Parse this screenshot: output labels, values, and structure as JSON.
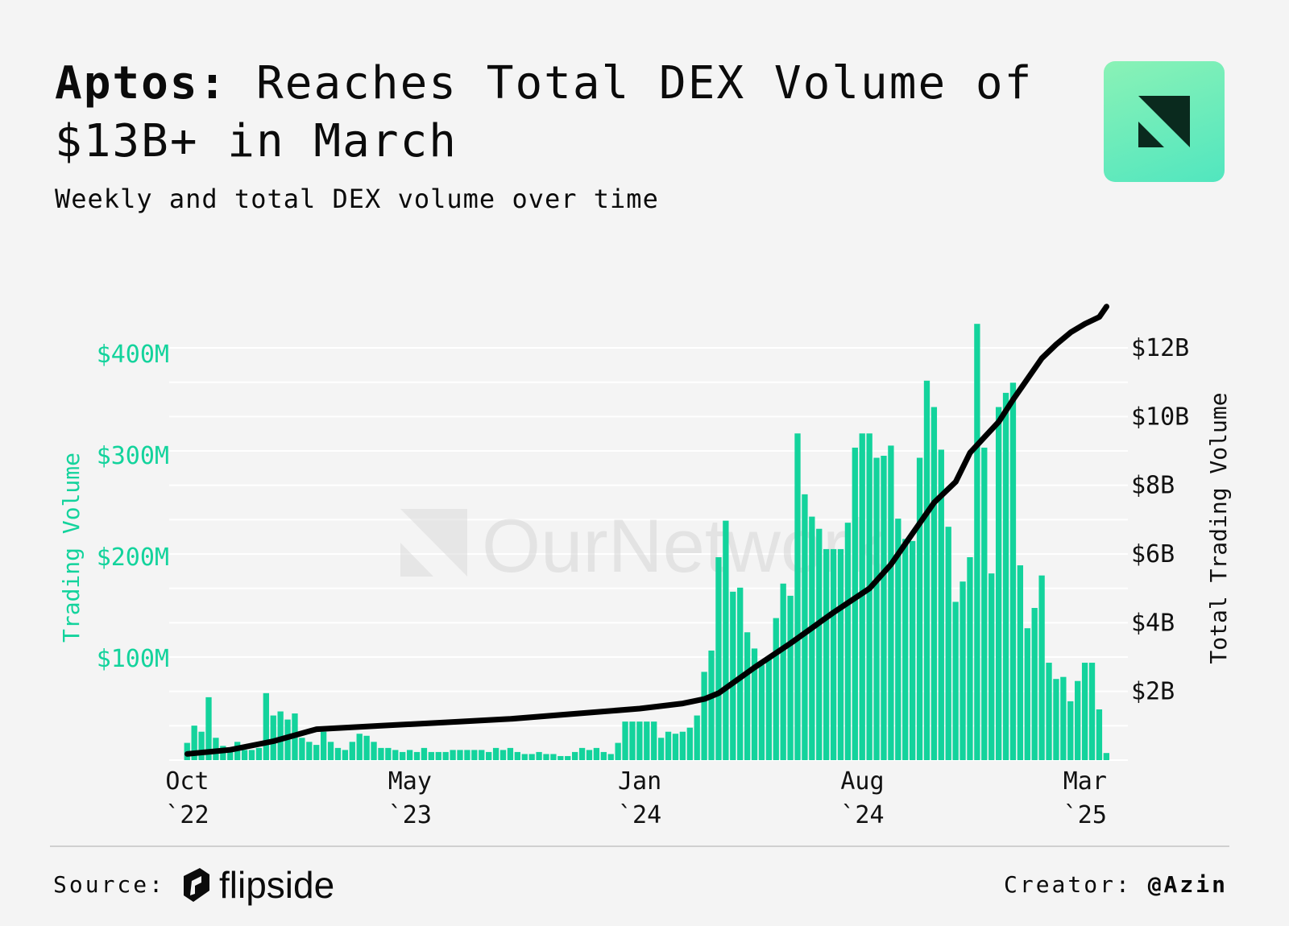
{
  "header": {
    "title_brand": "Aptos:",
    "title_rest": "Reaches Total DEX Volume of $13B+ in March",
    "subtitle": "Weekly and total DEX volume over time"
  },
  "footer": {
    "source_label": "Source:",
    "source_name": "flipside",
    "creator_label": "Creator:",
    "creator_handle": "@Azin"
  },
  "watermark": {
    "text": "OurNetwork"
  },
  "colors": {
    "bar": "#13d39c",
    "line": "#000000",
    "left_axis_text": "#13d39c",
    "right_axis_text": "#111111",
    "grid": "#ffffff",
    "logo_gradient": [
      "#8af2b6",
      "#51e6bf"
    ]
  },
  "chart_data": {
    "type": "bar",
    "x_tick_labels": [
      {
        "line1": "Oct",
        "line2": "`22"
      },
      {
        "line1": "May",
        "line2": "`23"
      },
      {
        "line1": "Jan",
        "line2": "`24"
      },
      {
        "line1": "Aug",
        "line2": "`24"
      },
      {
        "line1": "Mar",
        "line2": "`25"
      }
    ],
    "x_tick_weeks": [
      0,
      31,
      63,
      94,
      125
    ],
    "left_axis": {
      "label": "Trading Volume",
      "unit": "M",
      "range": [
        0,
        400
      ],
      "ticks": [
        100,
        200,
        300,
        400
      ],
      "tick_labels": [
        "$100M",
        "$200M",
        "$300M",
        "$400M"
      ]
    },
    "right_axis": {
      "label": "Total Trading Volume",
      "unit": "B",
      "range": [
        0,
        12.75
      ],
      "ticks": [
        2,
        4,
        6,
        8,
        10,
        12
      ],
      "tick_labels": [
        "$2B",
        "$4B",
        "$6B",
        "$8B",
        "$10B",
        "$12B"
      ]
    },
    "grid": true,
    "series": [
      {
        "type": "bar",
        "axis": "left",
        "values": [
          17,
          34,
          28,
          62,
          22,
          14,
          10,
          18,
          10,
          10,
          12,
          66,
          44,
          48,
          40,
          46,
          22,
          18,
          15,
          28,
          18,
          12,
          10,
          18,
          26,
          24,
          18,
          12,
          12,
          10,
          8,
          10,
          8,
          12,
          8,
          8,
          8,
          10,
          10,
          10,
          10,
          10,
          8,
          12,
          10,
          12,
          8,
          6,
          6,
          8,
          6,
          6,
          4,
          4,
          8,
          12,
          10,
          12,
          8,
          6,
          17,
          38,
          38,
          38,
          38,
          38,
          22,
          28,
          26,
          28,
          32,
          44,
          87,
          108,
          200,
          236,
          166,
          170,
          126,
          110,
          94,
          100,
          140,
          174,
          162,
          322,
          262,
          240,
          228,
          208,
          208,
          208,
          234,
          308,
          322,
          322,
          298,
          300,
          310,
          238,
          218,
          216,
          298,
          374,
          348,
          306,
          230,
          156,
          176,
          200,
          430,
          308,
          184,
          348,
          362,
          372,
          192,
          130,
          150,
          182,
          96,
          80,
          82,
          58,
          78,
          96,
          96,
          50,
          7
        ],
        "unit": "USD millions"
      },
      {
        "type": "line",
        "axis": "right",
        "values": [
          0.18,
          0.3,
          0.55,
          0.9,
          1.0,
          1.1,
          1.2,
          1.35,
          1.5,
          1.65,
          1.78,
          1.95,
          2.7,
          3.4,
          4.3,
          5.0,
          5.7,
          6.6,
          7.5,
          8.1,
          8.95,
          9.4,
          9.85,
          10.5,
          11.1,
          11.7,
          12.1,
          12.45,
          12.7,
          12.9,
          13.2
        ],
        "weeks": [
          0,
          6,
          12,
          18,
          27,
          36,
          45,
          54,
          63,
          69,
          72,
          74,
          79,
          84,
          90,
          95,
          98,
          101,
          104,
          107,
          109,
          111,
          113,
          115,
          117,
          119,
          121,
          123,
          125,
          127,
          128
        ],
        "unit": "USD billions"
      }
    ]
  }
}
